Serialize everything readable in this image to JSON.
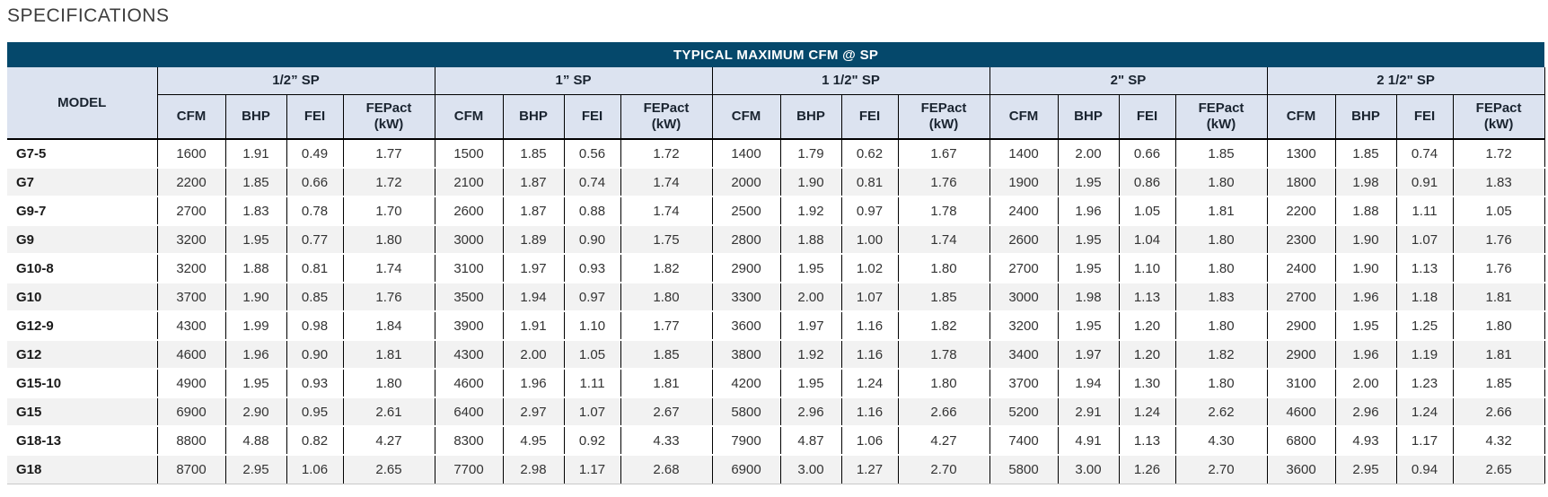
{
  "page": {
    "heading": "SPECIFICATIONS"
  },
  "table": {
    "title": "TYPICAL MAXIMUM CFM @ SP",
    "model_header": "MODEL",
    "sp_groups": [
      "1/2” SP",
      "1” SP",
      "1 1/2\" SP",
      "2\" SP",
      "2 1/2\" SP"
    ],
    "sub_columns": [
      {
        "label": "CFM"
      },
      {
        "label": "BHP"
      },
      {
        "label": "FEI"
      },
      {
        "label": "FEPact",
        "unit": "(kW)"
      }
    ],
    "colors": {
      "title_bar": "#05486B",
      "header_bg": "#DCE3F0",
      "alt_row": "#F2F2F2",
      "grid": "#000000"
    },
    "rows": [
      {
        "model": "G7-5",
        "values": [
          [
            "1600",
            "1.91",
            "0.49",
            "1.77"
          ],
          [
            "1500",
            "1.85",
            "0.56",
            "1.72"
          ],
          [
            "1400",
            "1.79",
            "0.62",
            "1.67"
          ],
          [
            "1400",
            "2.00",
            "0.66",
            "1.85"
          ],
          [
            "1300",
            "1.85",
            "0.74",
            "1.72"
          ]
        ]
      },
      {
        "model": "G7",
        "values": [
          [
            "2200",
            "1.85",
            "0.66",
            "1.72"
          ],
          [
            "2100",
            "1.87",
            "0.74",
            "1.74"
          ],
          [
            "2000",
            "1.90",
            "0.81",
            "1.76"
          ],
          [
            "1900",
            "1.95",
            "0.86",
            "1.80"
          ],
          [
            "1800",
            "1.98",
            "0.91",
            "1.83"
          ]
        ]
      },
      {
        "model": "G9-7",
        "values": [
          [
            "2700",
            "1.83",
            "0.78",
            "1.70"
          ],
          [
            "2600",
            "1.87",
            "0.88",
            "1.74"
          ],
          [
            "2500",
            "1.92",
            "0.97",
            "1.78"
          ],
          [
            "2400",
            "1.96",
            "1.05",
            "1.81"
          ],
          [
            "2200",
            "1.88",
            "1.11",
            "1.05"
          ]
        ]
      },
      {
        "model": "G9",
        "values": [
          [
            "3200",
            "1.95",
            "0.77",
            "1.80"
          ],
          [
            "3000",
            "1.89",
            "0.90",
            "1.75"
          ],
          [
            "2800",
            "1.88",
            "1.00",
            "1.74"
          ],
          [
            "2600",
            "1.95",
            "1.04",
            "1.80"
          ],
          [
            "2300",
            "1.90",
            "1.07",
            "1.76"
          ]
        ]
      },
      {
        "model": "G10-8",
        "values": [
          [
            "3200",
            "1.88",
            "0.81",
            "1.74"
          ],
          [
            "3100",
            "1.97",
            "0.93",
            "1.82"
          ],
          [
            "2900",
            "1.95",
            "1.02",
            "1.80"
          ],
          [
            "2700",
            "1.95",
            "1.10",
            "1.80"
          ],
          [
            "2400",
            "1.90",
            "1.13",
            "1.76"
          ]
        ]
      },
      {
        "model": "G10",
        "values": [
          [
            "3700",
            "1.90",
            "0.85",
            "1.76"
          ],
          [
            "3500",
            "1.94",
            "0.97",
            "1.80"
          ],
          [
            "3300",
            "2.00",
            "1.07",
            "1.85"
          ],
          [
            "3000",
            "1.98",
            "1.13",
            "1.83"
          ],
          [
            "2700",
            "1.96",
            "1.18",
            "1.81"
          ]
        ]
      },
      {
        "model": "G12-9",
        "values": [
          [
            "4300",
            "1.99",
            "0.98",
            "1.84"
          ],
          [
            "3900",
            "1.91",
            "1.10",
            "1.77"
          ],
          [
            "3600",
            "1.97",
            "1.16",
            "1.82"
          ],
          [
            "3200",
            "1.95",
            "1.20",
            "1.80"
          ],
          [
            "2900",
            "1.95",
            "1.25",
            "1.80"
          ]
        ]
      },
      {
        "model": "G12",
        "values": [
          [
            "4600",
            "1.96",
            "0.90",
            "1.81"
          ],
          [
            "4300",
            "2.00",
            "1.05",
            "1.85"
          ],
          [
            "3800",
            "1.92",
            "1.16",
            "1.78"
          ],
          [
            "3400",
            "1.97",
            "1.20",
            "1.82"
          ],
          [
            "2900",
            "1.96",
            "1.19",
            "1.81"
          ]
        ]
      },
      {
        "model": "G15-10",
        "values": [
          [
            "4900",
            "1.95",
            "0.93",
            "1.80"
          ],
          [
            "4600",
            "1.96",
            "1.11",
            "1.81"
          ],
          [
            "4200",
            "1.95",
            "1.24",
            "1.80"
          ],
          [
            "3700",
            "1.94",
            "1.30",
            "1.80"
          ],
          [
            "3100",
            "2.00",
            "1.23",
            "1.85"
          ]
        ]
      },
      {
        "model": "G15",
        "values": [
          [
            "6900",
            "2.90",
            "0.95",
            "2.61"
          ],
          [
            "6400",
            "2.97",
            "1.07",
            "2.67"
          ],
          [
            "5800",
            "2.96",
            "1.16",
            "2.66"
          ],
          [
            "5200",
            "2.91",
            "1.24",
            "2.62"
          ],
          [
            "4600",
            "2.96",
            "1.24",
            "2.66"
          ]
        ]
      },
      {
        "model": "G18-13",
        "values": [
          [
            "8800",
            "4.88",
            "0.82",
            "4.27"
          ],
          [
            "8300",
            "4.95",
            "0.92",
            "4.33"
          ],
          [
            "7900",
            "4.87",
            "1.06",
            "4.27"
          ],
          [
            "7400",
            "4.91",
            "1.13",
            "4.30"
          ],
          [
            "6800",
            "4.93",
            "1.17",
            "4.32"
          ]
        ]
      },
      {
        "model": "G18",
        "values": [
          [
            "8700",
            "2.95",
            "1.06",
            "2.65"
          ],
          [
            "7700",
            "2.98",
            "1.17",
            "2.68"
          ],
          [
            "6900",
            "3.00",
            "1.27",
            "2.70"
          ],
          [
            "5800",
            "3.00",
            "1.26",
            "2.70"
          ],
          [
            "3600",
            "2.95",
            "0.94",
            "2.65"
          ]
        ]
      }
    ]
  }
}
